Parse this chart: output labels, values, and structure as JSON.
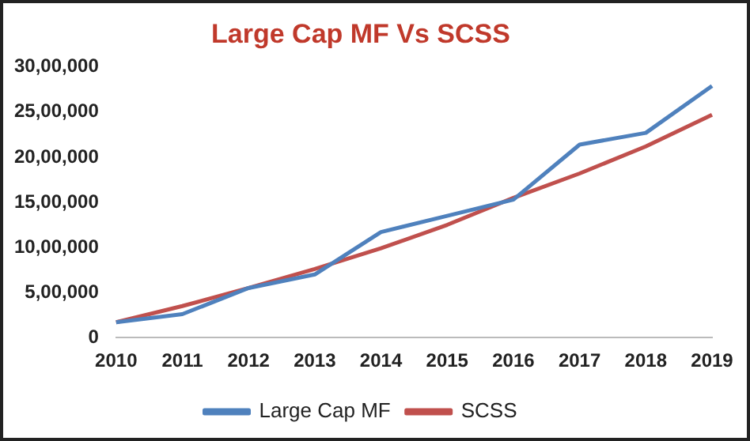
{
  "chart_data": {
    "type": "line",
    "title": "Large Cap MF Vs SCSS",
    "categories": [
      "2010",
      "2011",
      "2012",
      "2013",
      "2014",
      "2015",
      "2016",
      "2017",
      "2018",
      "2019"
    ],
    "series": [
      {
        "name": "Large Cap MF",
        "color": "#4f81bd",
        "values": [
          170000,
          260000,
          550000,
          700000,
          1170000,
          1350000,
          1530000,
          2140000,
          2270000,
          2790000
        ]
      },
      {
        "name": "SCSS",
        "color": "#c0504d",
        "values": [
          170000,
          350000,
          550000,
          760000,
          990000,
          1250000,
          1550000,
          1820000,
          2120000,
          2470000
        ]
      }
    ],
    "ylim": [
      0,
      3000000
    ],
    "yticks": [
      {
        "value": 0,
        "label": "0"
      },
      {
        "value": 500000,
        "label": "5,00,000"
      },
      {
        "value": 1000000,
        "label": "10,00,000"
      },
      {
        "value": 1500000,
        "label": "15,00,000"
      },
      {
        "value": 2000000,
        "label": "20,00,000"
      },
      {
        "value": 2500000,
        "label": "25,00,000"
      },
      {
        "value": 3000000,
        "label": "30,00,000"
      }
    ],
    "grid": false,
    "legend": "bottom",
    "marker": "none",
    "line_style": "solid"
  }
}
